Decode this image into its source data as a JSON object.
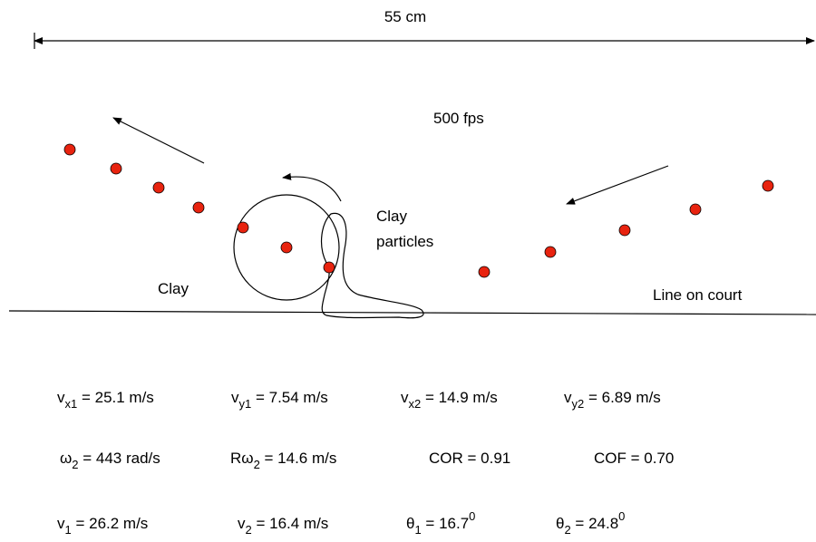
{
  "header": {
    "distance": "55 cm",
    "frame_rate": "500 fps"
  },
  "labels": {
    "clay_particles": [
      "Clay",
      "particles"
    ],
    "clay": "Clay",
    "court_line": "Line on court"
  },
  "equations": [
    [
      {
        "symbol": "v",
        "sub": "x1",
        "rest": " = 25.1 m/s"
      },
      {
        "symbol": "v",
        "sub": "y1",
        "rest": " = 7.54 m/s"
      },
      {
        "symbol": "v",
        "sub": "x2",
        "rest": " = 14.9 m/s"
      },
      {
        "symbol": "v",
        "sub": "y2",
        "rest": " = 6.89 m/s"
      }
    ],
    [
      {
        "symbol": "ω",
        "sub": "2",
        "rest": " = 443 rad/s"
      },
      {
        "symbol": "Rω",
        "sub": "2",
        "rest": " = 14.6 m/s"
      },
      {
        "symbol": "COR = 0.91"
      },
      {
        "symbol": "COF = 0.70"
      }
    ],
    [
      {
        "symbol": "v",
        "sub": "1",
        "rest": " = 26.2 m/s"
      },
      {
        "symbol": "v",
        "sub": "2",
        "rest": " = 16.4 m/s"
      },
      {
        "symbol": "θ",
        "sub": "1",
        "rest": " = 16.7",
        "sup": "0"
      },
      {
        "symbol": "θ",
        "sub": "2",
        "rest": " = 24.8",
        "sup": "0"
      }
    ]
  ]
}
